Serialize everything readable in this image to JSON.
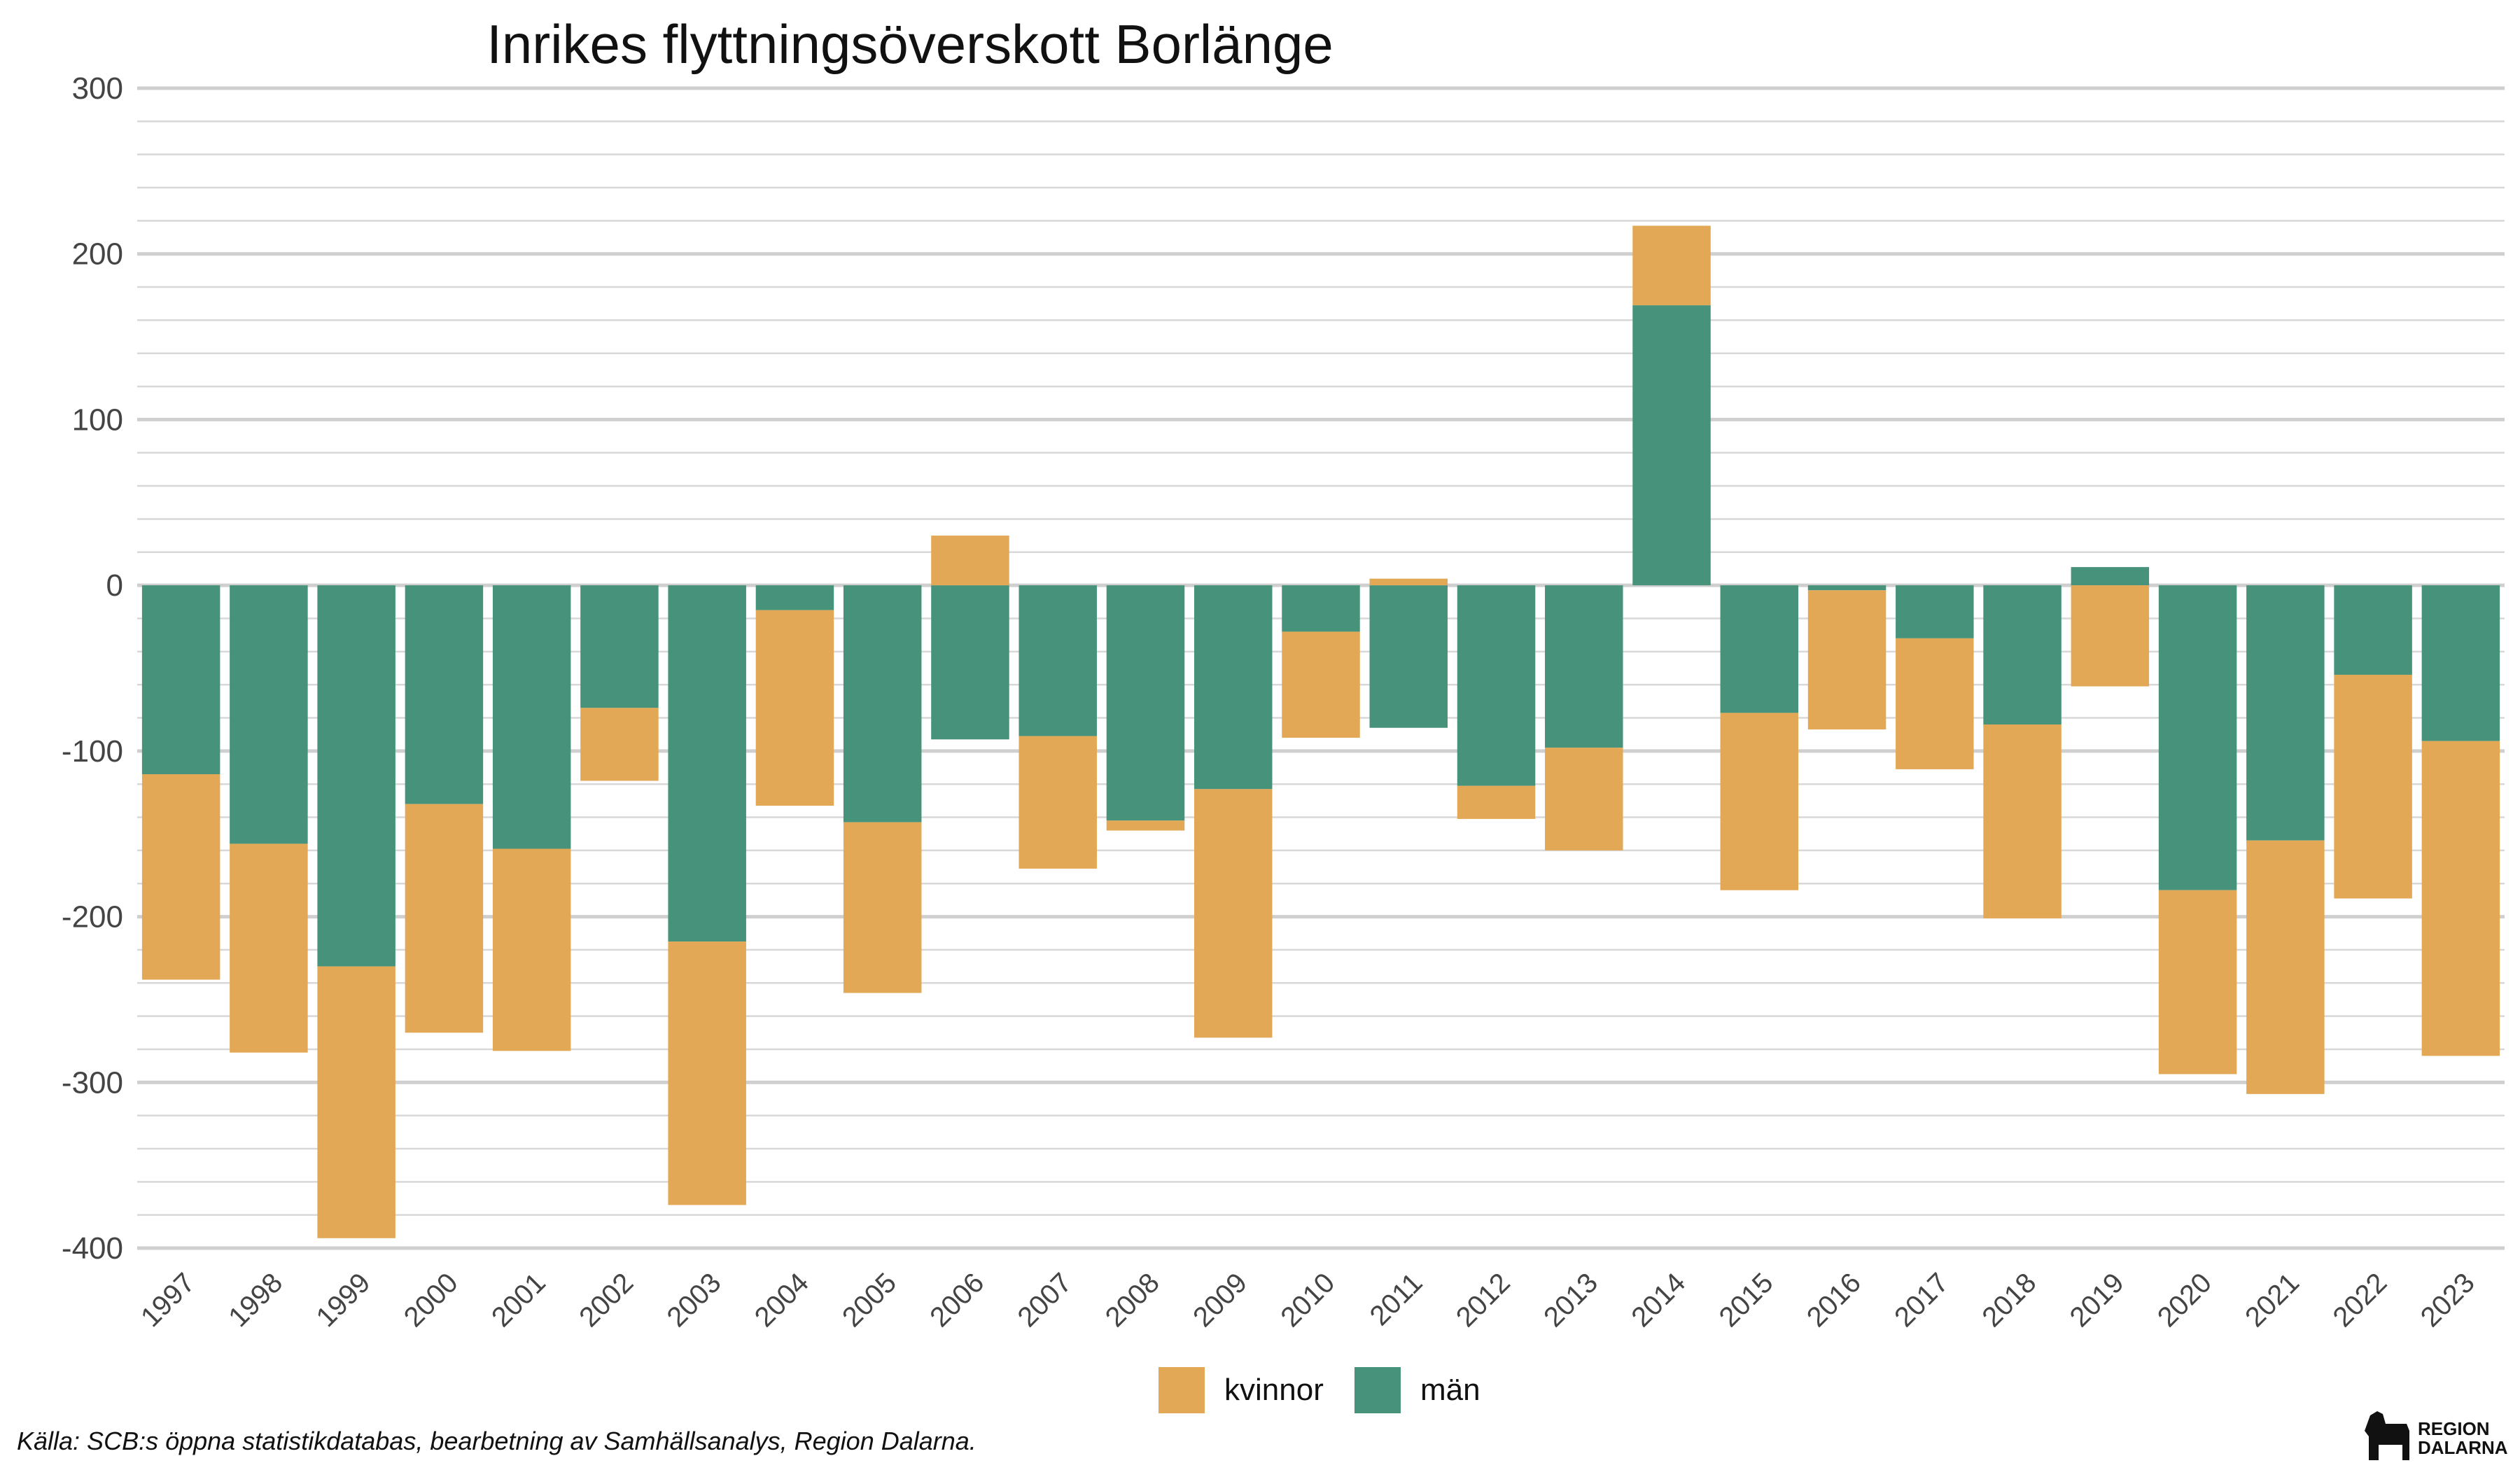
{
  "chart_data": {
    "type": "bar",
    "stacked": true,
    "title": "Inrikes flyttningsöverskott Borlänge",
    "xlabel": "",
    "ylabel": "",
    "ylim": [
      -400,
      300
    ],
    "yticks": [
      300,
      200,
      100,
      0,
      -100,
      -200,
      -300,
      -400
    ],
    "grid": true,
    "legend_position": "bottom",
    "categories": [
      "1997",
      "1998",
      "1999",
      "2000",
      "2001",
      "2002",
      "2003",
      "2004",
      "2005",
      "2006",
      "2007",
      "2008",
      "2009",
      "2010",
      "2011",
      "2012",
      "2013",
      "2014",
      "2015",
      "2016",
      "2017",
      "2018",
      "2019",
      "2020",
      "2021",
      "2022",
      "2023"
    ],
    "series": [
      {
        "name": "män",
        "color": "#46927A",
        "values": [
          -114,
          -156,
          -230,
          -132,
          -159,
          -74,
          -215,
          -15,
          -143,
          -93,
          -91,
          -142,
          -123,
          -28,
          -86,
          -121,
          -98,
          169,
          -77,
          -3,
          -32,
          -84,
          11,
          -184,
          -154,
          -54,
          -94
        ]
      },
      {
        "name": "kvinnor",
        "color": "#E3A855",
        "values": [
          -124,
          -126,
          -164,
          -138,
          -122,
          -44,
          -159,
          -118,
          -103,
          30,
          -80,
          -6,
          -150,
          -64,
          4,
          -20,
          -62,
          48,
          -107,
          -84,
          -79,
          -117,
          -61,
          -111,
          -153,
          -135,
          -190
        ]
      }
    ]
  },
  "source": "Källa: SCB:s öppna statistikdatabas, bearbetning av Samhällsanalys, Region Dalarna.",
  "logo": {
    "line1": "REGION",
    "line2": "DALARNA",
    "icon": "dala-horse-icon"
  }
}
